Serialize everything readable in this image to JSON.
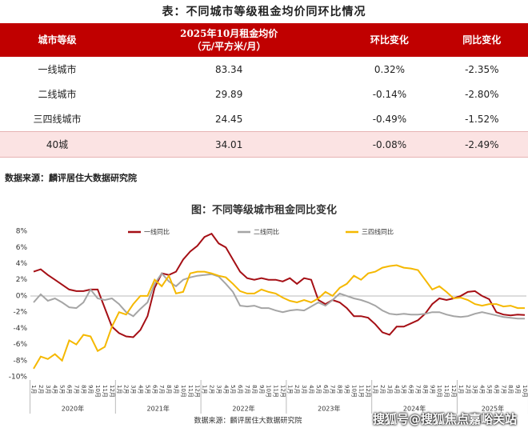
{
  "table": {
    "title": "表：不同城市等级租金均价同环比情况",
    "columns": [
      "城市等级",
      "2025年10月租金均价",
      "环比变化",
      "同比变化"
    ],
    "column_unit": "（元/平方米/月）",
    "rows": [
      [
        "一线城市",
        "83.34",
        "0.32%",
        "-2.35%"
      ],
      [
        "二线城市",
        "29.89",
        "-0.14%",
        "-2.80%"
      ],
      [
        "三四线城市",
        "24.45",
        "-0.49%",
        "-1.52%"
      ],
      [
        "40城",
        "34.01",
        "-0.08%",
        "-2.49%"
      ]
    ],
    "source": "数据来源：麟评居住大数据研究院"
  },
  "chart_data": {
    "type": "line",
    "title": "图：不同等级城市租金同比变化",
    "categories": [
      "1月",
      "2月",
      "3月",
      "4月",
      "5月",
      "6月",
      "7月",
      "8月",
      "9月",
      "10月",
      "11月",
      "12月",
      "1月",
      "2月",
      "3月",
      "4月",
      "5月",
      "6月",
      "7月",
      "8月",
      "9月",
      "10月",
      "11月",
      "12月",
      "1月",
      "2月",
      "3月",
      "4月",
      "5月",
      "6月",
      "7月",
      "8月",
      "9月",
      "10月",
      "11月",
      "12月",
      "1月",
      "2月",
      "3月",
      "4月",
      "5月",
      "6月",
      "7月",
      "8月",
      "9月",
      "10月",
      "11月",
      "12月",
      "1月",
      "2月",
      "3月",
      "4月",
      "5月",
      "6月",
      "7月",
      "8月",
      "9月",
      "10月",
      "11月",
      "12月",
      "1月",
      "2月",
      "3月",
      "4月",
      "5月",
      "6月",
      "7月",
      "8月",
      "9月",
      "10月"
    ],
    "x_groups": [
      "2020年",
      "2021年",
      "2022年",
      "2023年",
      "2024年",
      "2025年"
    ],
    "series": [
      {
        "name": "一线同比",
        "color": "#a50f15",
        "values": [
          3.0,
          3.3,
          2.6,
          2.0,
          1.4,
          0.8,
          0.6,
          0.6,
          0.8,
          0.8,
          -1.5,
          -3.8,
          -4.6,
          -5.0,
          -5.1,
          -4.2,
          -2.5,
          1.0,
          2.8,
          2.6,
          3.0,
          4.5,
          5.5,
          6.2,
          7.3,
          7.7,
          6.5,
          6.0,
          4.5,
          3.0,
          2.2,
          2.0,
          2.2,
          2.0,
          2.0,
          1.8,
          2.2,
          1.5,
          2.2,
          2.0,
          -0.5,
          -1.0,
          -0.5,
          -0.8,
          -1.5,
          -2.5,
          -2.5,
          -2.7,
          -3.5,
          -4.5,
          -4.8,
          -3.8,
          -3.8,
          -3.4,
          -3.0,
          -2.2,
          -1.0,
          -0.3,
          -0.5,
          -0.3,
          0.0,
          0.5,
          0.6,
          0.0,
          -0.4,
          -2.0,
          -2.3,
          -2.4,
          -2.3,
          -2.35
        ]
      },
      {
        "name": "二线同比",
        "color": "#a5a5a5",
        "values": [
          -0.8,
          0.2,
          -0.6,
          -0.3,
          -0.8,
          -1.4,
          -1.5,
          -0.8,
          0.8,
          -0.3,
          -0.5,
          -0.3,
          -1.0,
          -2.0,
          -2.5,
          -1.6,
          -0.8,
          1.5,
          2.8,
          1.8,
          1.2,
          2.0,
          2.3,
          2.5,
          2.6,
          2.7,
          2.4,
          1.5,
          0.5,
          -1.2,
          -1.3,
          -1.2,
          -1.5,
          -1.5,
          -1.8,
          -2.0,
          -1.8,
          -1.7,
          -1.8,
          -1.3,
          -0.8,
          -1.2,
          -0.5,
          0.3,
          0.0,
          -0.3,
          -0.5,
          -0.8,
          -1.2,
          -1.8,
          -2.2,
          -2.3,
          -2.2,
          -2.3,
          -2.3,
          -2.2,
          -2.0,
          -2.0,
          -2.3,
          -2.5,
          -2.6,
          -2.5,
          -2.2,
          -2.0,
          -2.2,
          -2.4,
          -2.6,
          -2.7,
          -2.8,
          -2.8
        ]
      },
      {
        "name": "三四线同比",
        "color": "#f5b800",
        "values": [
          -9.0,
          -7.5,
          -7.8,
          -7.2,
          -8.0,
          -5.5,
          -6.0,
          -4.8,
          -5.0,
          -6.8,
          -6.3,
          -3.8,
          -2.0,
          -2.3,
          -1.0,
          0.0,
          0.0,
          2.0,
          1.2,
          2.5,
          0.3,
          0.5,
          2.8,
          3.0,
          3.0,
          2.8,
          2.5,
          2.3,
          1.5,
          0.6,
          0.3,
          0.3,
          0.8,
          0.5,
          0.3,
          -0.2,
          -0.6,
          -0.8,
          -0.5,
          -0.8,
          -0.3,
          0.5,
          0.0,
          1.0,
          1.5,
          2.5,
          2.0,
          2.8,
          3.0,
          3.5,
          3.7,
          3.8,
          3.5,
          3.4,
          3.2,
          2.0,
          0.8,
          1.2,
          0.5,
          -0.3,
          -0.2,
          -0.5,
          -1.0,
          -1.2,
          -1.0,
          -1.0,
          -1.3,
          -1.2,
          -1.5,
          -1.5
        ]
      }
    ],
    "ylim": [
      -10,
      9
    ],
    "yticks": [
      {
        "value": -10,
        "label": "-10%"
      },
      {
        "value": -8,
        "label": "-8%"
      },
      {
        "value": -6,
        "label": "-6%"
      },
      {
        "value": -4,
        "label": "-4%"
      },
      {
        "value": -2,
        "label": "-2%"
      },
      {
        "value": 0,
        "label": "0%"
      },
      {
        "value": 2,
        "label": "2%"
      },
      {
        "value": 4,
        "label": "4%"
      },
      {
        "value": 6,
        "label": "6%"
      },
      {
        "value": 8,
        "label": "8%"
      }
    ],
    "grid": false,
    "legend": "top",
    "source": "数据来源：麟评居住大数据研究院",
    "watermark": "搜狐号@搜狐焦点嘉峪关站"
  }
}
